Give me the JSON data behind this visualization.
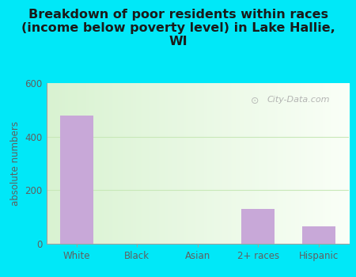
{
  "title": "Breakdown of poor residents within races\n(income below poverty level) in Lake Hallie,\nWI",
  "categories": [
    "White",
    "Black",
    "Asian",
    "2+ races",
    "Hispanic"
  ],
  "values": [
    480,
    0,
    0,
    130,
    65
  ],
  "bar_color": "#c8a8d8",
  "ylabel": "absolute numbers",
  "ylim": [
    0,
    600
  ],
  "yticks": [
    0,
    200,
    400,
    600
  ],
  "background_outer": "#00e8f8",
  "grid_color": "#c8e8b8",
  "title_color": "#1a1a1a",
  "tick_label_color": "#606060",
  "watermark_text": "City-Data.com",
  "title_fontsize": 11.5,
  "tick_fontsize": 8.5,
  "ylabel_fontsize": 8.5
}
